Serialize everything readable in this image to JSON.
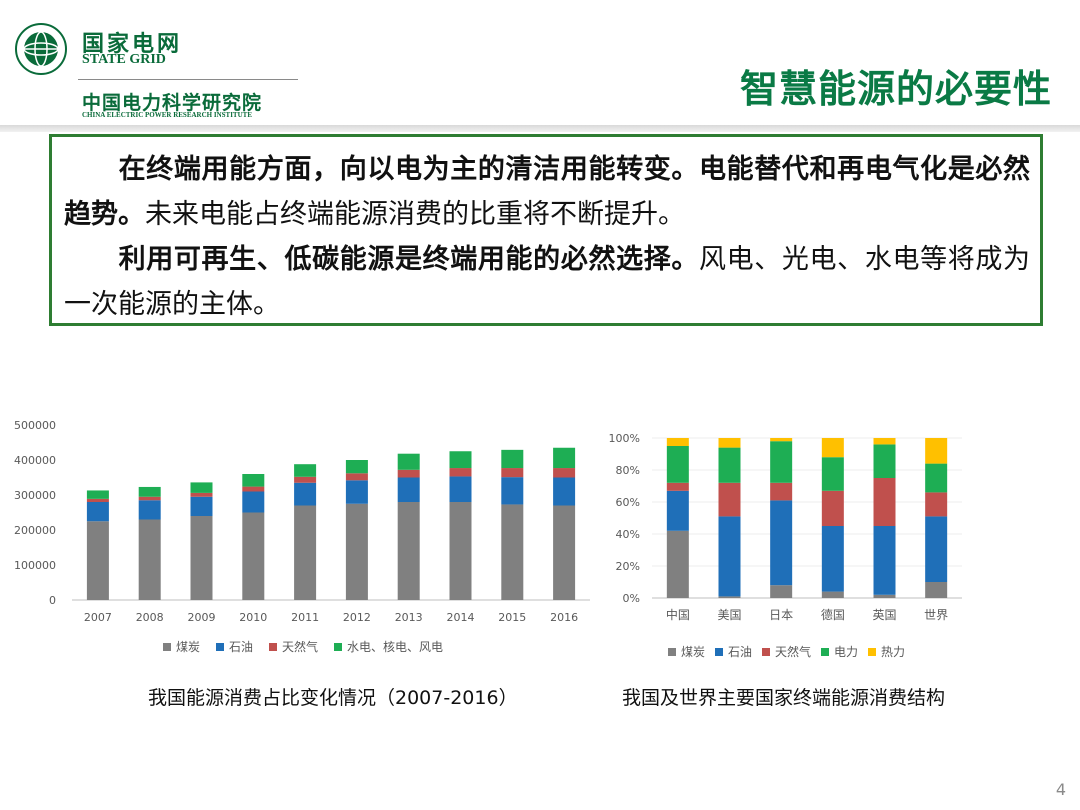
{
  "header": {
    "brand_cn": "国家电网",
    "brand_en": "STATE GRID",
    "institute_cn": "中国电力科学研究院",
    "institute_en": "CHINA ELECTRIC POWER RESEARCH INSTITUTE",
    "title": "智慧能源的必要性"
  },
  "textbox": {
    "p1_bold": "在终端用能方面，向以电为主的清洁用能转变。电能替代和再电气化是必然趋势。",
    "p1_rest": "未来电能占终端能源消费的比重将不断提升。",
    "p2_bold": "利用可再生、低碳能源是终端用能的必然选择。",
    "p2_rest": "风电、光电、水电等将成为一次能源的主体。"
  },
  "colors": {
    "brand_green": "#0a6b3a",
    "coal": "#808080",
    "oil": "#1f6fb8",
    "gas": "#c0504d",
    "clean": "#1eae54",
    "heat": "#ffc000"
  },
  "chart_data": [
    {
      "type": "bar",
      "stacked": true,
      "title": "",
      "categories": [
        "2007",
        "2008",
        "2009",
        "2010",
        "2011",
        "2012",
        "2013",
        "2014",
        "2015",
        "2016"
      ],
      "series": [
        {
          "name": "煤炭",
          "values": [
            225000,
            230000,
            240000,
            250000,
            270000,
            275000,
            280000,
            280000,
            273000,
            270000
          ]
        },
        {
          "name": "石油",
          "values": [
            55000,
            55000,
            55000,
            60000,
            65000,
            67000,
            70000,
            73000,
            78000,
            80000
          ]
        },
        {
          "name": "天然气",
          "values": [
            9000,
            10000,
            11000,
            14000,
            17000,
            20000,
            22000,
            24000,
            26000,
            27000
          ]
        },
        {
          "name": "水电、核电、风电",
          "values": [
            24000,
            28000,
            30000,
            36000,
            36000,
            38000,
            46000,
            48000,
            52000,
            58000
          ]
        }
      ],
      "yticks": [
        "0",
        "100000",
        "200000",
        "300000",
        "400000",
        "500000"
      ],
      "ylim": [
        0,
        500000
      ],
      "legend": "bottom",
      "caption": "我国能源消费占比变化情况（2007-2016）"
    },
    {
      "type": "bar",
      "stacked": true,
      "title": "",
      "categories": [
        "中国",
        "美国",
        "日本",
        "德国",
        "英国",
        "世界"
      ],
      "series": [
        {
          "name": "煤炭",
          "values": [
            42,
            1,
            8,
            4,
            2,
            10
          ]
        },
        {
          "name": "石油",
          "values": [
            25,
            50,
            53,
            41,
            43,
            41
          ]
        },
        {
          "name": "天然气",
          "values": [
            5,
            21,
            11,
            22,
            30,
            15
          ]
        },
        {
          "name": "电力",
          "values": [
            23,
            22,
            26,
            21,
            21,
            18
          ]
        },
        {
          "name": "热力",
          "values": [
            5,
            6,
            2,
            12,
            4,
            16
          ]
        }
      ],
      "yticks": [
        "0%",
        "20%",
        "40%",
        "60%",
        "80%",
        "100%"
      ],
      "ylim": [
        0,
        100
      ],
      "legend": "bottom",
      "caption": "我国及世界主要国家终端能源消费结构"
    }
  ],
  "page_number": "4"
}
